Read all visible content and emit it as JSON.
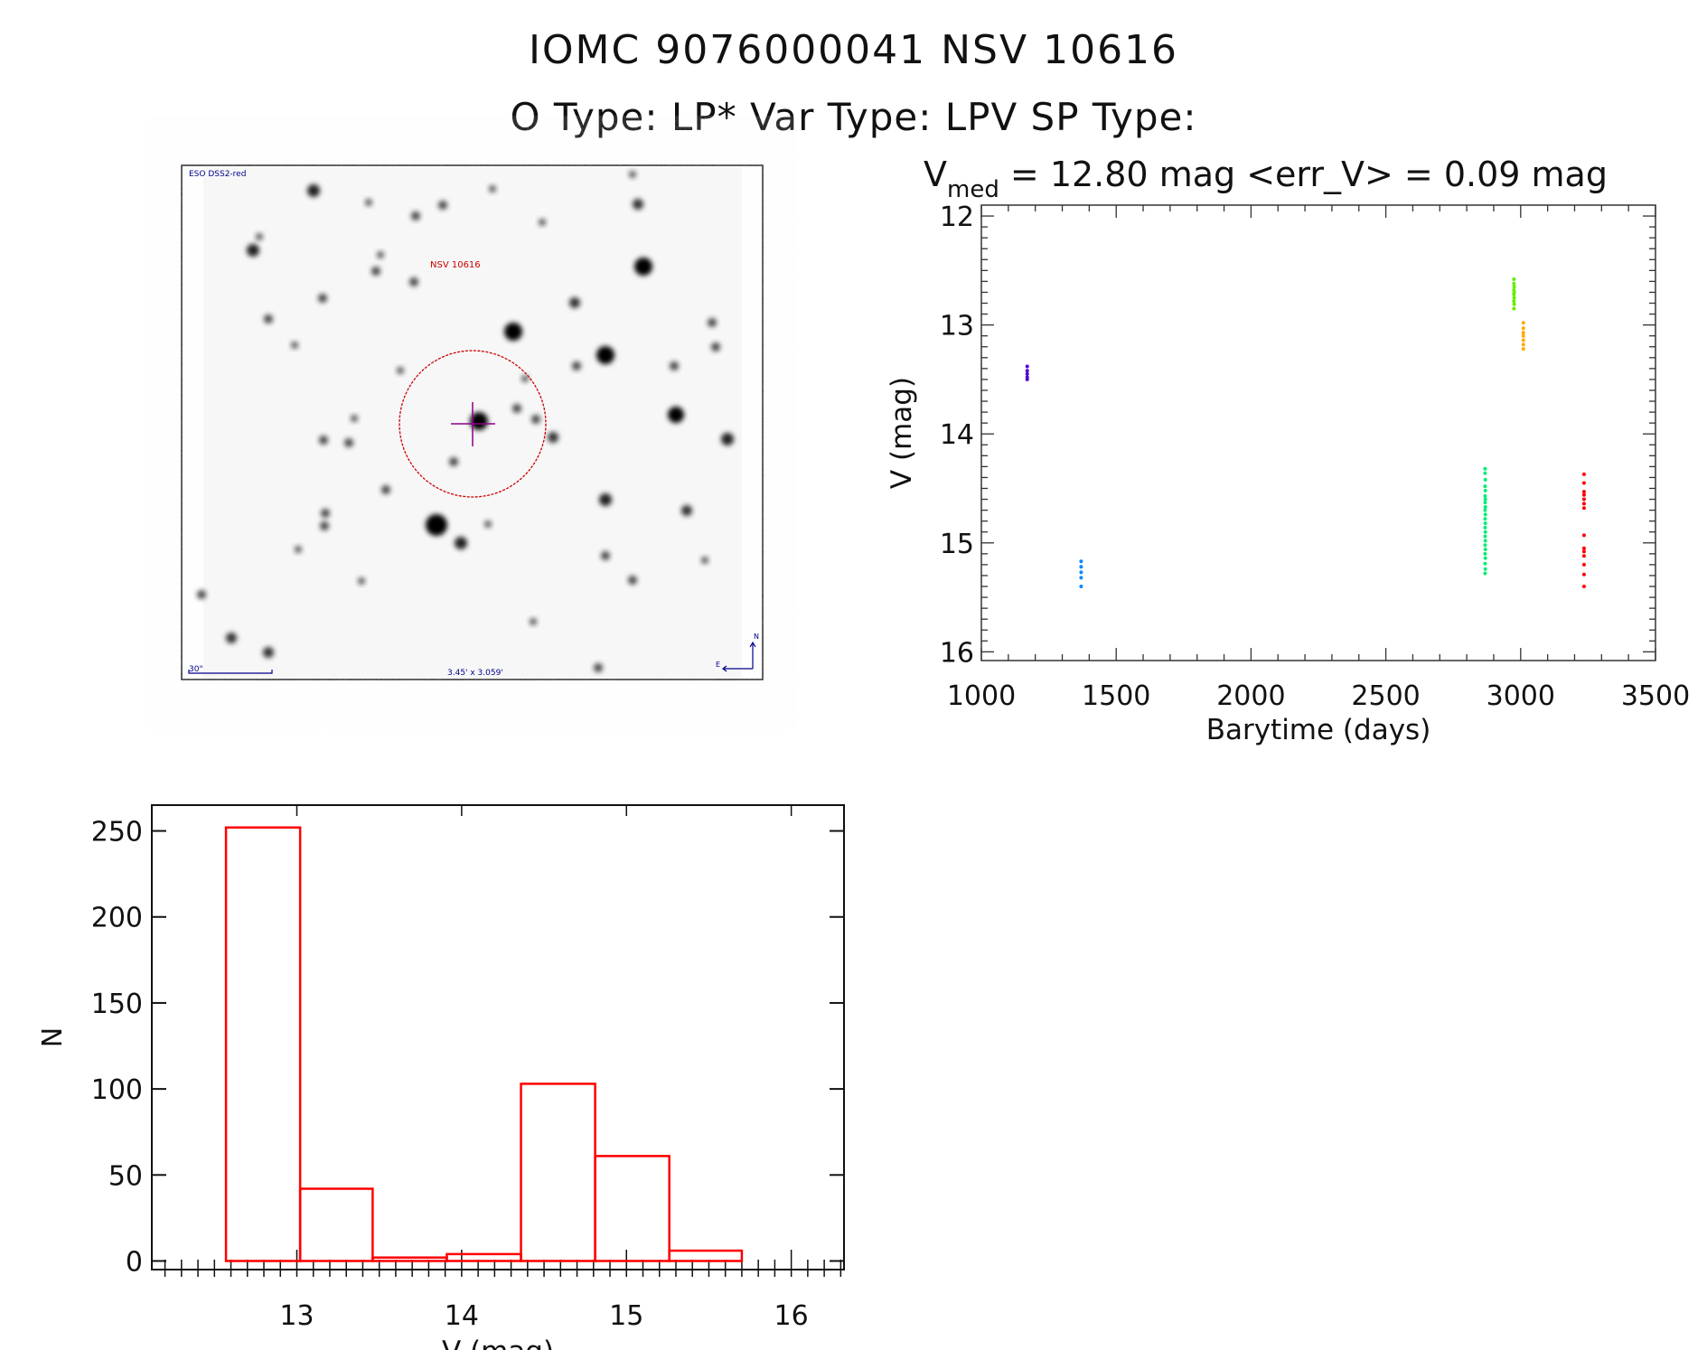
{
  "header": {
    "title_line1": "IOMC 9076000041    NSV 10616",
    "title_line2": "O Type: LP*   Var Type: LPV   SP Type:"
  },
  "finder_image": {
    "survey_label": "ESO DSS2-red",
    "target_label": "NSV 10616",
    "scale_label": "30\"",
    "fov_label": "3.45' x 3.059'",
    "north_label": "N",
    "east_label": "E",
    "colors": {
      "labels": "#00008b",
      "target": "#cc0000",
      "crosshair": "#8b008b"
    }
  },
  "chart_data": [
    {
      "type": "scatter",
      "title_parts": {
        "v": "V",
        "sub": "med",
        "rest": " = 12.80 mag <err_V> = 0.09 mag"
      },
      "xlabel": "Barytime (days)",
      "ylabel": "V (mag)",
      "xlim": [
        1000,
        3500
      ],
      "ylim": [
        16.08,
        11.9
      ],
      "y_inverted": true,
      "xticks": [
        1000,
        1500,
        2000,
        2500,
        3000,
        3500
      ],
      "yticks": [
        12,
        13,
        14,
        15,
        16
      ],
      "grid": false,
      "series": [
        {
          "color": "#5500cc",
          "x": [
            1170,
            1170,
            1170,
            1170,
            1170
          ],
          "y": [
            13.38,
            13.42,
            13.45,
            13.48,
            13.5
          ]
        },
        {
          "color": "#0088ff",
          "x": [
            1370,
            1370,
            1370,
            1370,
            1370
          ],
          "y": [
            15.17,
            15.22,
            15.27,
            15.32,
            15.4
          ]
        },
        {
          "color": "#00ee77",
          "x": [
            2868,
            2868,
            2869,
            2868,
            2869,
            2868,
            2869,
            2868,
            2869,
            2868,
            2869,
            2868,
            2869,
            2868,
            2869,
            2868,
            2869,
            2868,
            2869,
            2868,
            2869,
            2868,
            2869,
            2868
          ],
          "y": [
            14.32,
            14.36,
            14.42,
            14.48,
            14.52,
            14.57,
            14.6,
            14.63,
            14.67,
            14.7,
            14.74,
            14.78,
            14.82,
            14.86,
            14.9,
            14.94,
            14.98,
            15.02,
            15.06,
            15.1,
            15.14,
            15.19,
            15.24,
            15.28
          ]
        },
        {
          "color": "#66ee00",
          "x": [
            2975,
            2975,
            2976,
            2975,
            2976,
            2975,
            2976,
            2975,
            2976,
            2975
          ],
          "y": [
            12.58,
            12.62,
            12.65,
            12.68,
            12.7,
            12.72,
            12.75,
            12.78,
            12.81,
            12.85
          ]
        },
        {
          "color": "#ffaa00",
          "x": [
            3010,
            3010,
            3010,
            3010,
            3010,
            3010,
            3010
          ],
          "y": [
            12.98,
            13.03,
            13.07,
            13.1,
            13.14,
            13.18,
            13.22
          ]
        },
        {
          "color": "#ff0000",
          "x": [
            3235,
            3235,
            3235,
            3235,
            3235,
            3235,
            3235,
            3235,
            3235,
            3235,
            3235,
            3235,
            3235,
            3235
          ],
          "y": [
            14.37,
            14.45,
            14.53,
            14.56,
            14.6,
            14.64,
            14.68,
            14.93,
            15.05,
            15.08,
            15.12,
            15.2,
            15.29,
            15.4
          ]
        }
      ]
    },
    {
      "type": "bar",
      "histogram": true,
      "xlabel": "V (mag)",
      "ylabel": "N",
      "xlim": [
        12.12,
        16.32
      ],
      "ylim": [
        -5,
        265
      ],
      "xticks": [
        13,
        14,
        15,
        16
      ],
      "yticks": [
        0,
        50,
        100,
        150,
        200,
        250
      ],
      "bin_edges": [
        12.57,
        13.02,
        13.46,
        13.91,
        14.36,
        14.81,
        15.26,
        15.7
      ],
      "values": [
        252,
        42,
        2,
        4,
        103,
        61,
        6
      ],
      "color": "#ff0000",
      "grid": false
    }
  ]
}
